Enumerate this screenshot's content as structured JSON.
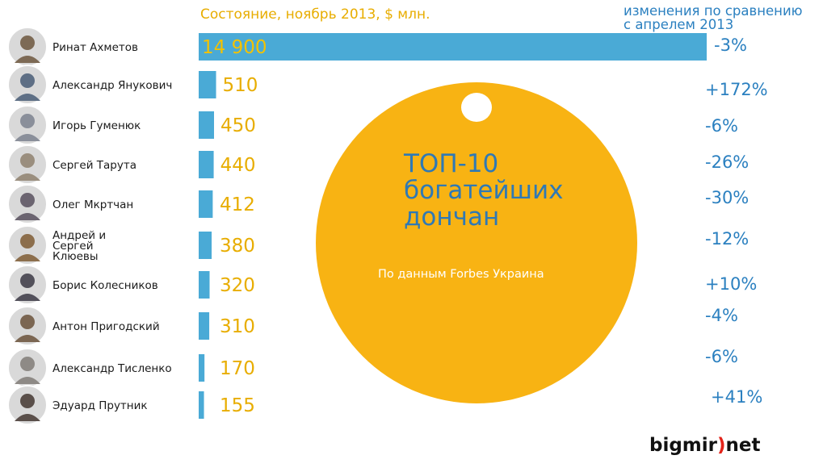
{
  "header": {
    "state_label": "Состояние, ноябрь 2013, $ млн.",
    "change_label_line1": "изменения по сравнению",
    "change_label_line2": "с апрелем 2013"
  },
  "center_disk": {
    "title_lines": [
      "ТОП-10",
      "богатейших",
      "дончан"
    ],
    "source": "По данным Forbes Украина"
  },
  "logo": {
    "left": "bigmir",
    "mark": ")",
    "right": "net"
  },
  "colors": {
    "bar": "#4aaad6",
    "value_text": "#e8ad00",
    "change_text": "#2b80c0",
    "disk": "#f8b313",
    "logo_mark": "#e2231a"
  },
  "chart_data": {
    "type": "bar",
    "orientation": "horizontal",
    "xlim": [
      0,
      14900
    ],
    "categories": [
      "Ринат Ахметов",
      "Александр Янукович",
      "Игорь Гуменюк",
      "Сергей Тарута",
      "Олег Мкртчан",
      "Андрей и Сергей Клюевы",
      "Борис Колесников",
      "Антон Пригодский",
      "Александр Тисленко",
      "Эдуард Прутник"
    ],
    "name_lines": [
      [
        "Ринат Ахметов"
      ],
      [
        "Александр Янукович"
      ],
      [
        "Игорь Гуменюк"
      ],
      [
        "Сергей Тарута"
      ],
      [
        "Олег Мкртчан"
      ],
      [
        "Андрей и",
        "Сергей",
        "Клюевы"
      ],
      [
        "Борис Колесников"
      ],
      [
        "Антон Пригодский"
      ],
      [
        "Александр Тисленко"
      ],
      [
        "Эдуард Прутник"
      ]
    ],
    "values": [
      14900,
      510,
      450,
      440,
      412,
      380,
      320,
      310,
      170,
      155
    ],
    "value_labels": [
      "14 900",
      "510",
      "450",
      "440",
      "412",
      "380",
      "320",
      "310",
      "170",
      "155"
    ],
    "changes": [
      "-3%",
      "+172%",
      "-6%",
      "-26%",
      "-30%",
      "-12%",
      "+10%",
      "-4%",
      "-6%",
      "+41%"
    ]
  }
}
